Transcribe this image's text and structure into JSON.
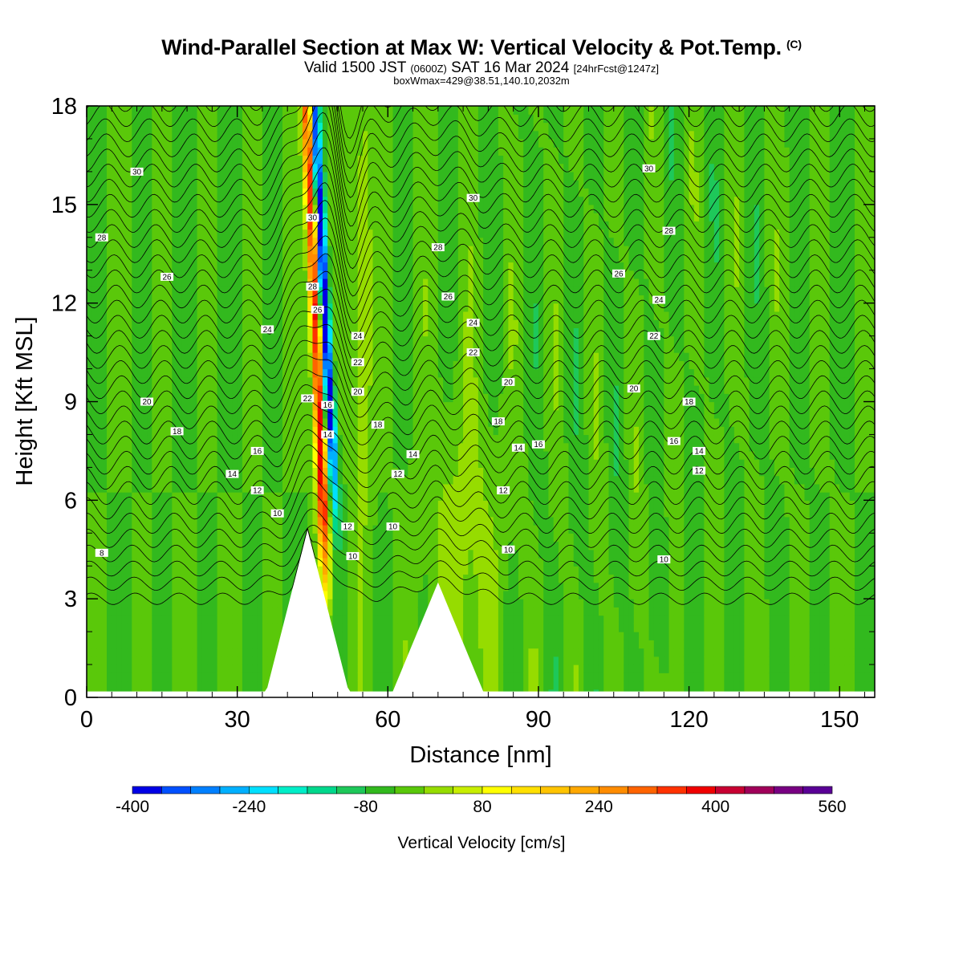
{
  "chart_data": {
    "type": "heatmap",
    "title": "Wind-Parallel Section at Max W: Vertical Velocity & Pot.Temp.",
    "title_mark": "(C)",
    "subtitle_parts": {
      "valid": "Valid 1500 JST",
      "zulu": "(0600Z)",
      "date": "SAT 16 Mar 2024",
      "fcst": "[24hrFcst@1247z]"
    },
    "subtitle2": "boxWmax=429@38.51,140.10,2032m",
    "xlabel": "Distance [nm]",
    "ylabel": "Height [Kft MSL]",
    "xlim": [
      0,
      157
    ],
    "ylim": [
      0,
      18
    ],
    "x_ticks": [
      0,
      30,
      60,
      90,
      120,
      150
    ],
    "y_ticks": [
      0,
      3,
      6,
      9,
      12,
      15,
      18
    ],
    "colorbar": {
      "label": "Vertical Velocity [cm/s]",
      "tick_labels": [
        -400,
        -240,
        -80,
        80,
        240,
        400,
        560
      ],
      "min": -400,
      "max": 560,
      "colors": [
        "#0000e6",
        "#0050ff",
        "#0080ff",
        "#00b0ff",
        "#00e0ff",
        "#00eec8",
        "#00d88c",
        "#1ec85a",
        "#32b91e",
        "#5ac80a",
        "#96dc00",
        "#c8ee00",
        "#ffff00",
        "#ffe000",
        "#ffc400",
        "#ffa800",
        "#ff8c00",
        "#ff6400",
        "#ff3200",
        "#f00000",
        "#c80032",
        "#a0005a",
        "#780082",
        "#5a0096"
      ]
    },
    "terrain_peaks": [
      {
        "x": 44,
        "height": 5.1
      },
      {
        "x": 70,
        "height": 3.5
      }
    ],
    "updraft_band_max": 429,
    "theta_labels": [
      "30",
      "28",
      "26",
      "24",
      "22",
      "20",
      "18",
      "16",
      "14",
      "12",
      "10",
      "8"
    ]
  }
}
